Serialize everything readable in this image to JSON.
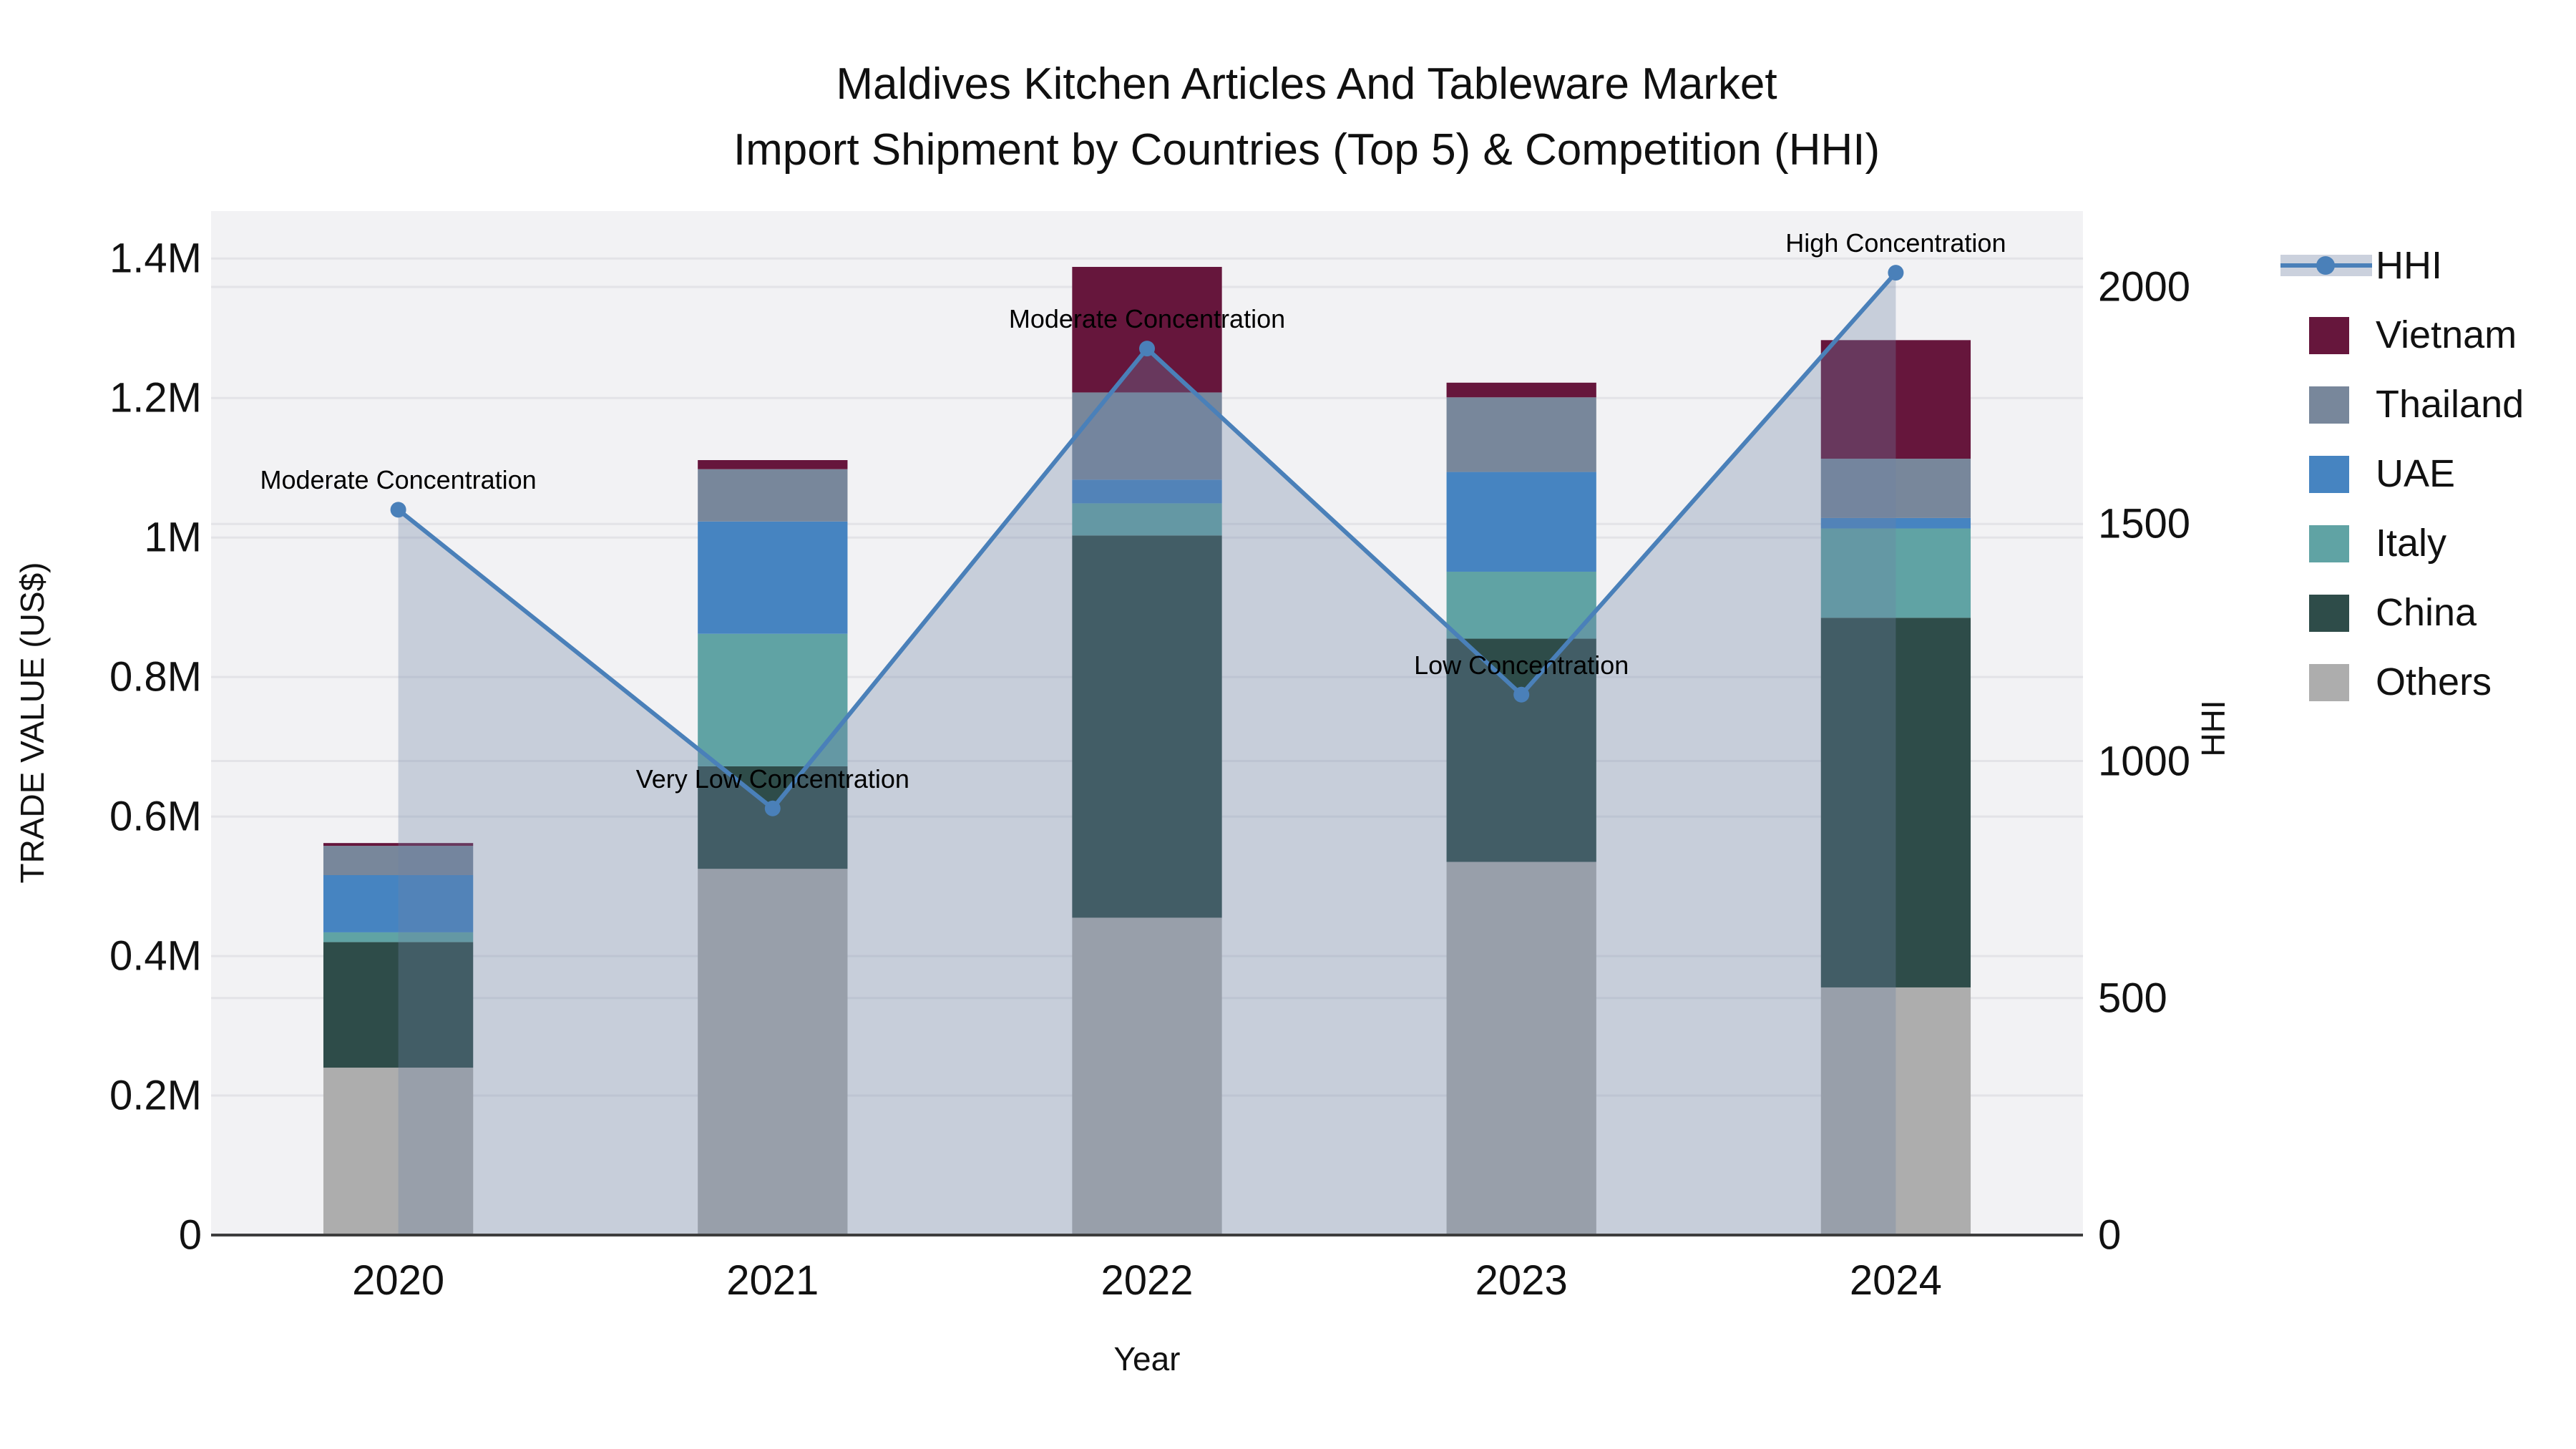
{
  "title": {
    "line1": "Maldives Kitchen Articles And Tableware Market",
    "line2": "Import Shipment by Countries (Top 5) & Competition (HHI)"
  },
  "colors": {
    "background": "#ffffff",
    "plot_background": "#f2f2f4",
    "gridline": "#e3e3e7",
    "axis_line": "#3d3d3d",
    "hhi_line": "#4a80b9",
    "hhi_area": "rgba(110,132,165,0.32)",
    "legend_hhi_band": "#cbd1dd",
    "vietnam": "#66163c",
    "thailand": "#78879b",
    "uae": "#4684c1",
    "italy": "#60a3a4",
    "china": "#2e4c49",
    "others": "#adadad"
  },
  "legend": {
    "items": [
      {
        "label": "HHI",
        "type": "line"
      },
      {
        "label": "Vietnam",
        "type": "swatch",
        "color": "#66163c"
      },
      {
        "label": "Thailand",
        "type": "swatch",
        "color": "#78879b"
      },
      {
        "label": "UAE",
        "type": "swatch",
        "color": "#4684c1"
      },
      {
        "label": "Italy",
        "type": "swatch",
        "color": "#60a3a4"
      },
      {
        "label": "China",
        "type": "swatch",
        "color": "#2e4c49"
      },
      {
        "label": "Others",
        "type": "swatch",
        "color": "#adadad"
      }
    ]
  },
  "chart_data": {
    "type": "bar+line",
    "title": "Maldives Kitchen Articles And Tableware Market Import Shipment by Countries (Top 5) & Competition (HHI)",
    "categories": [
      "2020",
      "2021",
      "2022",
      "2023",
      "2024"
    ],
    "stack_order": [
      "Others",
      "China",
      "Italy",
      "UAE",
      "Thailand",
      "Vietnam"
    ],
    "series": [
      {
        "name": "Vietnam",
        "color": "#66163c",
        "values": [
          4000,
          13000,
          180000,
          21000,
          170000
        ]
      },
      {
        "name": "Thailand",
        "color": "#78879b",
        "values": [
          42000,
          75000,
          125000,
          107000,
          85000
        ]
      },
      {
        "name": "UAE",
        "color": "#4684c1",
        "values": [
          82000,
          161000,
          34000,
          143000,
          15000
        ]
      },
      {
        "name": "Italy",
        "color": "#60a3a4",
        "values": [
          14000,
          190000,
          46000,
          96000,
          128000
        ]
      },
      {
        "name": "China",
        "color": "#2e4c49",
        "values": [
          180000,
          147000,
          548000,
          320000,
          530000
        ]
      },
      {
        "name": "Others",
        "color": "#adadad",
        "values": [
          240000,
          525000,
          455000,
          535000,
          355000
        ]
      }
    ],
    "bar_totals": [
      562000,
      1111000,
      1388000,
      1222000,
      1283000
    ],
    "hhi": {
      "name": "HHI",
      "color": "#4a80b9",
      "area_color": "rgba(110,132,165,0.32)",
      "values": [
        1530,
        900,
        1870,
        1140,
        2030
      ],
      "point_labels": [
        "Moderate Concentration",
        "Very Low Concentration",
        "Moderate Concentration",
        "Low Concentration",
        "High Concentration"
      ]
    },
    "y_left": {
      "label": "TRADE VALUE (US$)",
      "max": 1468000,
      "ticks": [
        0,
        200000,
        400000,
        600000,
        800000,
        1000000,
        1200000,
        1400000
      ],
      "tick_labels": [
        "0",
        "0.2M",
        "0.4M",
        "0.6M",
        "0.8M",
        "1M",
        "1.2M",
        "1.4M"
      ]
    },
    "y_right": {
      "label": "HHI",
      "max": 2160,
      "ticks": [
        0,
        500,
        1000,
        1500,
        2000
      ],
      "tick_labels": [
        "0",
        "500",
        "1000",
        "1500",
        "2000"
      ]
    },
    "x": {
      "label": "Year"
    },
    "layout": {
      "grid": "both-axes",
      "legend_position": "right",
      "bar_width_fraction": 0.4
    }
  }
}
